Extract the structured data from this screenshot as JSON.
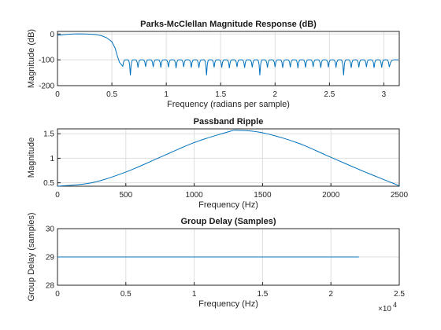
{
  "chart_data": [
    {
      "type": "line",
      "title": "Parks-McClellan Magnitude Response (dB)",
      "xlabel": "Frequency (radians per sample)",
      "ylabel": "Magnitude (dB)",
      "xlim": [
        0,
        3.14159
      ],
      "ylim": [
        -200,
        10
      ],
      "xticks": [
        0,
        0.5,
        1,
        1.5,
        2,
        2.5,
        3
      ],
      "xtick_labels": [
        "0",
        "0.5",
        "1",
        "1.5",
        "2",
        "2.5",
        "3"
      ],
      "yticks": [
        -200,
        -100,
        0
      ],
      "ytick_labels": [
        "-200",
        "-100",
        "0"
      ],
      "grid": true,
      "series": [
        {
          "description_passband": "ripple near 0 dB from 0 to ~0.55 rad",
          "x": [
            0,
            0.05,
            0.1,
            0.15,
            0.2,
            0.25,
            0.3,
            0.35,
            0.4,
            0.45,
            0.5,
            0.53,
            0.55,
            0.57
          ],
          "y": [
            -5,
            -3,
            -1,
            0,
            0.5,
            0.3,
            -0.5,
            -2,
            -6,
            -14,
            -30,
            -55,
            -85,
            -110
          ],
          "stopband_range": [
            0.58,
            3.14159
          ],
          "stopband_ripple_peak_db": -100,
          "stopband_nulls_x": [
            0.6,
            0.67,
            0.74,
            0.81,
            0.88,
            0.95,
            1.02,
            1.09,
            1.16,
            1.23,
            1.3,
            1.37,
            1.44,
            1.51,
            1.58,
            1.65,
            1.72,
            1.79,
            1.86,
            1.93,
            2.0,
            2.07,
            2.14,
            2.21,
            2.28,
            2.35,
            2.42,
            2.49,
            2.56,
            2.63,
            2.7,
            2.77,
            2.84,
            2.91,
            2.98,
            3.05
          ],
          "stopband_nulls_db": [
            -125,
            -160,
            -130,
            -127,
            -128,
            -130,
            -129,
            -132,
            -128,
            -130,
            -131,
            -160,
            -129,
            -130,
            -132,
            -128,
            -131,
            -129,
            -160,
            -130,
            -128,
            -131,
            -129,
            -132,
            -130,
            -128,
            -131,
            -129,
            -130,
            -160,
            -131,
            -129,
            -128,
            -131,
            -130,
            -128
          ]
        }
      ]
    },
    {
      "type": "line",
      "title": "Passband Ripple",
      "xlabel": "Frequency (Hz)",
      "ylabel": "Magnitude",
      "xlim": [
        0,
        2500
      ],
      "ylim": [
        0.43,
        1.6
      ],
      "xticks": [
        0,
        500,
        1000,
        1500,
        2000,
        2500
      ],
      "xtick_labels": [
        "0",
        "500",
        "1000",
        "1500",
        "2000",
        "2500"
      ],
      "yticks": [
        0.5,
        1,
        1.5
      ],
      "ytick_labels": [
        "0.5",
        "1",
        "1.5"
      ],
      "grid": true,
      "series": [
        {
          "x": [
            0,
            250,
            500,
            750,
            1000,
            1250,
            1320,
            1500,
            1750,
            2000,
            2250,
            2500
          ],
          "y": [
            0.43,
            0.5,
            0.72,
            1.02,
            1.32,
            1.54,
            1.57,
            1.52,
            1.32,
            1.02,
            0.72,
            0.44
          ]
        }
      ]
    },
    {
      "type": "line",
      "title": "Group Delay (Samples)",
      "xlabel": "Frequency (Hz)",
      "ylabel": "Group Delay (samples)",
      "xlim": [
        0,
        25000
      ],
      "ylim": [
        28,
        30
      ],
      "xticks": [
        0,
        5000,
        10000,
        15000,
        20000,
        25000
      ],
      "xtick_labels": [
        "0",
        "0.5",
        "1",
        "1.5",
        "2",
        "2.5"
      ],
      "x_exponent_label": "×10",
      "x_exponent": "4",
      "yticks": [
        28,
        29,
        30
      ],
      "ytick_labels": [
        "28",
        "29",
        "30"
      ],
      "grid": true,
      "series": [
        {
          "x": [
            0,
            22050
          ],
          "y": [
            29,
            29
          ]
        }
      ]
    }
  ],
  "colors": {
    "line": "#0072bd",
    "grid": "#dedede",
    "axes": "#262626"
  }
}
